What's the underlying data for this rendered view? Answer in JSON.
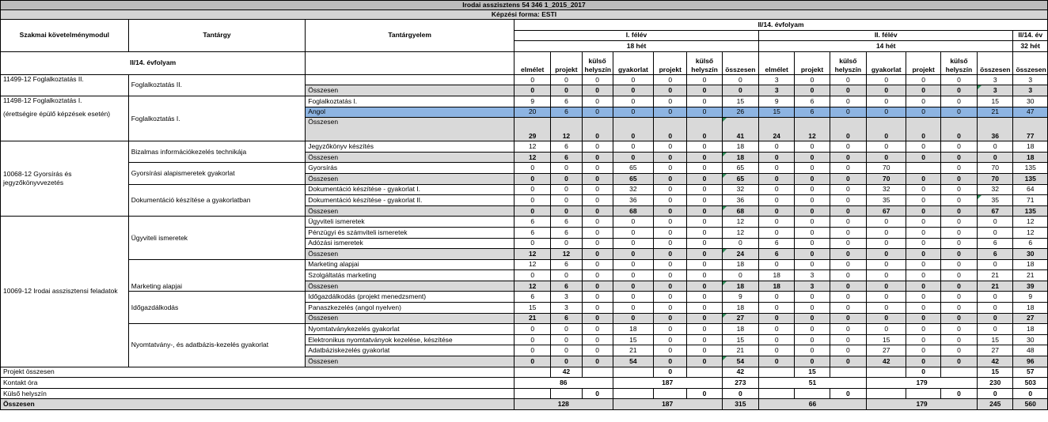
{
  "title": "Irodai asszisztens 54 346 1_2015_2017",
  "subtitle": "Képzési forma: ESTI",
  "header": {
    "modul": "Szakmai követelménymodul",
    "tantargy": "Tantárgy",
    "tantargyelem": "Tantárgyelem",
    "evfolyam": "II/14. évfolyam",
    "felev1": "I. félév",
    "het1": "18 hét",
    "felev2": "II. félév",
    "het2": "14 hét",
    "ev": "II/14. év",
    "het3": "32 hét",
    "evfolyam_left": "II/14. évfolyam",
    "cols": [
      "elmélet",
      "projekt",
      "külső helyszín",
      "gyakorlat",
      "projekt",
      "külső helyszín",
      "összesen",
      "elmélet",
      "projekt",
      "külső helyszín",
      "gyakorlat",
      "projekt",
      "külső helyszín",
      "összesen",
      "összesen"
    ]
  },
  "modules": {
    "m1": "11499-12 Foglalkoztatás II.",
    "m2a": "11498-12 Foglalkoztatás I.",
    "m2b": "(érettségire épülő képzések esetén)",
    "m3": "10068-12 Gyorsírás és jegyzőkönyvvezetés",
    "m4": "10069-12 Irodai asszisztensi feladatok"
  },
  "subjects": {
    "s1": "Foglalkoztatás II.",
    "s2": "Foglalkoztatás I.",
    "s3": "Bizalmas információkezelés technikája",
    "s4": "Gyorsírási alapismeretek gyakorlat",
    "s5": "Dokumentáció készítése a gyakorlatban",
    "s6": "Ügyviteli ismeretek",
    "s7": "Marketing alapjai",
    "s8": "Időgazdálkodás",
    "s9": "Nyomtatvány-, és adatbázis-kezelés gyakorlat"
  },
  "rows": {
    "r1": {
      "label": "",
      "v": [
        "0",
        "0",
        "0",
        "0",
        "0",
        "0",
        "0",
        "3",
        "0",
        "0",
        "0",
        "0",
        "0",
        "3",
        "3"
      ]
    },
    "r2": {
      "label": "Összesen",
      "v": [
        "0",
        "0",
        "0",
        "0",
        "0",
        "0",
        "0",
        "3",
        "0",
        "0",
        "0",
        "0",
        "0",
        "3",
        "3"
      ]
    },
    "r3": {
      "label": "Foglalkoztatás I.",
      "v": [
        "9",
        "6",
        "0",
        "0",
        "0",
        "0",
        "15",
        "9",
        "6",
        "0",
        "0",
        "0",
        "0",
        "15",
        "30"
      ]
    },
    "r4": {
      "label": "Angol",
      "v": [
        "20",
        "6",
        "0",
        "0",
        "0",
        "0",
        "26",
        "15",
        "6",
        "0",
        "0",
        "0",
        "0",
        "21",
        "47"
      ]
    },
    "r5": {
      "label": "Összesen",
      "v": [
        "29",
        "12",
        "0",
        "0",
        "0",
        "0",
        "41",
        "24",
        "12",
        "0",
        "0",
        "0",
        "0",
        "36",
        "77"
      ]
    },
    "r6": {
      "label": "Jegyzőkönyv készítés",
      "v": [
        "12",
        "6",
        "0",
        "0",
        "0",
        "0",
        "18",
        "0",
        "0",
        "0",
        "0",
        "0",
        "0",
        "0",
        "18"
      ]
    },
    "r7": {
      "label": "Összesen",
      "v": [
        "12",
        "6",
        "0",
        "0",
        "0",
        "0",
        "18",
        "0",
        "0",
        "0",
        "0",
        "0",
        "0",
        "0",
        "18"
      ]
    },
    "r8": {
      "label": "Gyorsírás",
      "v": [
        "0",
        "0",
        "0",
        "65",
        "0",
        "0",
        "65",
        "0",
        "0",
        "0",
        "70",
        "",
        "0",
        "70",
        "135"
      ]
    },
    "r9": {
      "label": "Összesen",
      "v": [
        "0",
        "0",
        "0",
        "65",
        "0",
        "0",
        "65",
        "0",
        "0",
        "0",
        "70",
        "0",
        "0",
        "70",
        "135"
      ]
    },
    "r10": {
      "label": "Dokumentáció készítése - gyakorlat I.",
      "v": [
        "0",
        "0",
        "0",
        "32",
        "0",
        "0",
        "32",
        "0",
        "0",
        "0",
        "32",
        "0",
        "0",
        "32",
        "64"
      ]
    },
    "r11": {
      "label": "Dokumentáció készítése - gyakorlat II.",
      "v": [
        "0",
        "0",
        "0",
        "36",
        "0",
        "0",
        "36",
        "0",
        "0",
        "0",
        "35",
        "0",
        "0",
        "35",
        "71"
      ]
    },
    "r12": {
      "label": "Összesen",
      "v": [
        "0",
        "0",
        "0",
        "68",
        "0",
        "0",
        "68",
        "0",
        "0",
        "0",
        "67",
        "0",
        "0",
        "67",
        "135"
      ]
    },
    "r13": {
      "label": "Ügyviteli ismeretek",
      "v": [
        "6",
        "6",
        "0",
        "0",
        "0",
        "0",
        "12",
        "0",
        "0",
        "0",
        "0",
        "0",
        "0",
        "0",
        "12"
      ]
    },
    "r14": {
      "label": "Pénzügyi és számviteli ismeretek",
      "v": [
        "6",
        "6",
        "0",
        "0",
        "0",
        "0",
        "12",
        "0",
        "0",
        "0",
        "0",
        "0",
        "0",
        "0",
        "12"
      ]
    },
    "r15": {
      "label": "Adózási ismeretek",
      "v": [
        "0",
        "0",
        "0",
        "0",
        "0",
        "0",
        "0",
        "6",
        "0",
        "0",
        "0",
        "0",
        "0",
        "6",
        "6"
      ]
    },
    "r16": {
      "label": "Összesen",
      "v": [
        "12",
        "12",
        "0",
        "0",
        "0",
        "0",
        "24",
        "6",
        "0",
        "0",
        "0",
        "0",
        "0",
        "6",
        "30"
      ]
    },
    "r17": {
      "label": "Marketing alapjai",
      "v": [
        "12",
        "6",
        "0",
        "0",
        "0",
        "0",
        "18",
        "0",
        "0",
        "0",
        "0",
        "0",
        "0",
        "0",
        "18"
      ]
    },
    "r18": {
      "label": "Szolgáltatás marketing",
      "v": [
        "0",
        "0",
        "0",
        "0",
        "0",
        "0",
        "0",
        "18",
        "3",
        "0",
        "0",
        "0",
        "0",
        "21",
        "21"
      ]
    },
    "r19": {
      "label": "Összesen",
      "v": [
        "12",
        "6",
        "0",
        "0",
        "0",
        "0",
        "18",
        "18",
        "3",
        "0",
        "0",
        "0",
        "0",
        "21",
        "39"
      ]
    },
    "r20": {
      "label": "Időgazdálkodás (projekt menedzsment)",
      "v": [
        "6",
        "3",
        "0",
        "0",
        "0",
        "0",
        "9",
        "0",
        "0",
        "0",
        "0",
        "0",
        "0",
        "0",
        "9"
      ]
    },
    "r21": {
      "label": "Panaszkezelés (angol nyelven)",
      "v": [
        "15",
        "3",
        "0",
        "0",
        "0",
        "0",
        "18",
        "0",
        "0",
        "0",
        "0",
        "0",
        "0",
        "0",
        "18"
      ]
    },
    "r22": {
      "label": "Összesen",
      "v": [
        "21",
        "6",
        "0",
        "0",
        "0",
        "0",
        "27",
        "0",
        "0",
        "0",
        "0",
        "0",
        "0",
        "0",
        "27"
      ]
    },
    "r23": {
      "label": "Nyomtatványkezelés gyakorlat",
      "v": [
        "0",
        "0",
        "0",
        "18",
        "0",
        "0",
        "18",
        "0",
        "0",
        "0",
        "0",
        "0",
        "0",
        "0",
        "18"
      ]
    },
    "r24": {
      "label": "Elektronikus nyomtatványok kezelése, készítése",
      "v": [
        "0",
        "0",
        "0",
        "15",
        "0",
        "0",
        "15",
        "0",
        "0",
        "0",
        "15",
        "0",
        "0",
        "15",
        "30"
      ]
    },
    "r25": {
      "label": "Adatbáziskezelés gyakorlat",
      "v": [
        "0",
        "0",
        "0",
        "21",
        "0",
        "0",
        "21",
        "0",
        "0",
        "0",
        "27",
        "0",
        "0",
        "27",
        "48"
      ]
    },
    "r26": {
      "label": "Összesen",
      "v": [
        "0",
        "0",
        "0",
        "54",
        "0",
        "0",
        "54",
        "0",
        "0",
        "0",
        "42",
        "0",
        "0",
        "42",
        "96"
      ]
    }
  },
  "footer": {
    "projekt_label": "Projekt összesen",
    "projekt": {
      "p1": "42",
      "p2": "0",
      "o1": "42",
      "p3": "15",
      "p4": "0",
      "o2": "15",
      "t": "57"
    },
    "kontakt_label": "Kontakt óra",
    "kontakt": {
      "e1": "86",
      "g1": "187",
      "o1": "273",
      "e2": "51",
      "g2": "179",
      "o2": "230",
      "t": "503"
    },
    "kulso_label": "Külső helyszín",
    "kulso": {
      "k1": "0",
      "k2": "0",
      "o1": "0",
      "k3": "0",
      "k4": "0",
      "o2": "0",
      "t": "0"
    },
    "osszesen_label": "Összesen",
    "osszesen": {
      "a": "128",
      "b": "187",
      "c": "315",
      "d": "66",
      "e": "179",
      "f": "245",
      "t": "560"
    }
  }
}
